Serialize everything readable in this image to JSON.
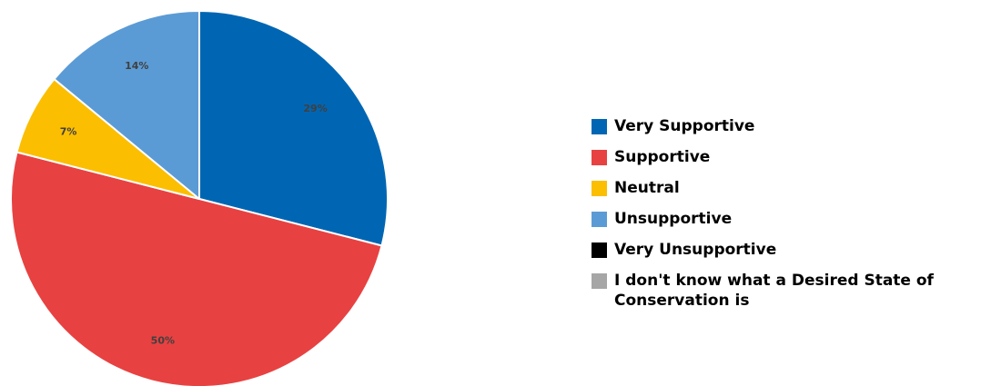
{
  "chart_data": {
    "type": "pie",
    "title": "",
    "legend_position": "right",
    "slices": [
      {
        "label": "Very Supportive",
        "value": 29,
        "value_label": "29%",
        "color": "#0066b3"
      },
      {
        "label": "Supportive",
        "value": 50,
        "value_label": "50%",
        "color": "#e84141"
      },
      {
        "label": "Neutral",
        "value": 7,
        "value_label": "7%",
        "color": "#fbbe00"
      },
      {
        "label": "Unsupportive",
        "value": 14,
        "value_label": "14%",
        "color": "#5b9bd5"
      },
      {
        "label": "Very Unsupportive",
        "value": 0,
        "value_label": "",
        "color": "#000000"
      },
      {
        "label": "I don't know what a Desired State of Conservation is",
        "value": 0,
        "value_label": "",
        "color": "#a6a6a6"
      }
    ]
  }
}
